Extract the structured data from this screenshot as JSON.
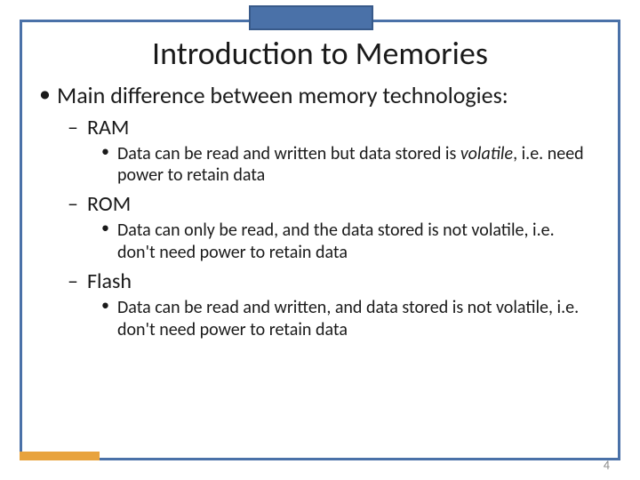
{
  "colors": {
    "border": "#4a71a8",
    "accent_box": "#4a71a8",
    "accent_box_border": "#385a8a",
    "bottom_accent": "#e8a33d",
    "text": "#1a1a1a",
    "page_number": "#8a8a8a",
    "background": "#ffffff"
  },
  "typography": {
    "title_fontsize": 36,
    "l1_fontsize": 26,
    "l2_fontsize": 24,
    "l3_fontsize": 20,
    "page_number_fontsize": 14,
    "font_family": "Calibri"
  },
  "layout": {
    "slide_width": 720,
    "slide_height": 540,
    "border_inset": 22,
    "border_width": 3
  },
  "title": "Introduction to Memories",
  "l1_text": "Main difference between memory technologies:",
  "page_number": "4",
  "items": [
    {
      "label": "RAM",
      "desc_pre": "Data can be read and written but data stored is ",
      "desc_italic": "volatile",
      "desc_post": ", i.e. need power to retain data"
    },
    {
      "label": "ROM",
      "desc_pre": "Data can only be read, and the data stored is not volatile, i.e. don't need power to retain data",
      "desc_italic": "",
      "desc_post": ""
    },
    {
      "label": "Flash",
      "desc_pre": "Data can be read and written, and data stored is not volatile, i.e. don't need power to retain data",
      "desc_italic": "",
      "desc_post": ""
    }
  ]
}
